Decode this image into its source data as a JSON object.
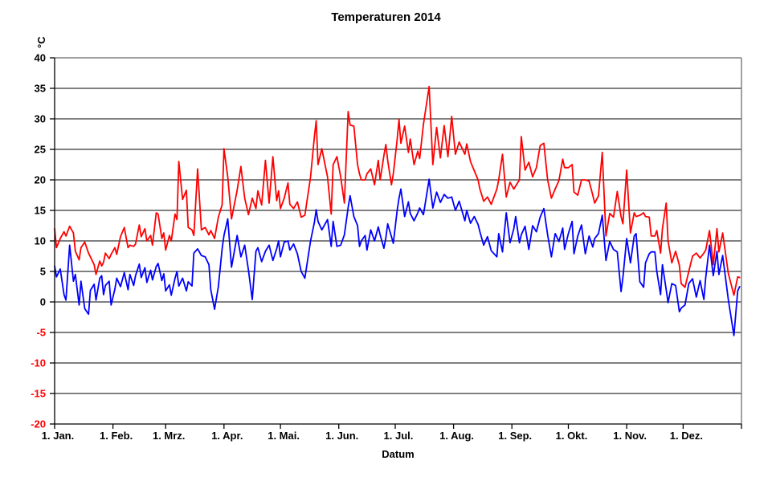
{
  "title": "Temperaturen 2014",
  "x_axis": {
    "label": "Datum",
    "ticks": [
      {
        "label": "1. Jan.",
        "day": 1
      },
      {
        "label": "1. Feb.",
        "day": 32
      },
      {
        "label": "1. Mrz.",
        "day": 60
      },
      {
        "label": "1. Apr.",
        "day": 91
      },
      {
        "label": "1. Mai.",
        "day": 121
      },
      {
        "label": "1. Jun.",
        "day": 152
      },
      {
        "label": "1. Jul.",
        "day": 182
      },
      {
        "label": "1. Aug.",
        "day": 213
      },
      {
        "label": "1. Sep.",
        "day": 244
      },
      {
        "label": "1. Okt.",
        "day": 274
      },
      {
        "label": "1. Nov.",
        "day": 305
      },
      {
        "label": "1. Dez.",
        "day": 335
      }
    ],
    "end_tick_day": 366
  },
  "y_axis": {
    "label": "°C",
    "min": -20,
    "max": 40,
    "step": 5,
    "positive_color": "#000000",
    "negative_color": "#ff0000"
  },
  "colors": {
    "grid": "#000000",
    "axis": "#000000",
    "frame": "#808080",
    "background": "#ffffff"
  },
  "chart_data": {
    "type": "line",
    "title": "Temperaturen 2014",
    "xlabel": "Datum",
    "ylabel": "°C",
    "ylim": [
      -20,
      40
    ],
    "xlim_days": [
      1,
      366
    ],
    "grid": "horizontal-only",
    "legend": "none",
    "x_unit": "day_of_year_2014",
    "x": [
      1,
      2,
      4,
      6,
      7,
      9,
      11,
      12,
      14,
      15,
      17,
      19,
      20,
      22,
      23,
      25,
      26,
      27,
      28,
      30,
      31,
      33,
      34,
      36,
      38,
      40,
      41,
      43,
      44,
      46,
      47,
      49,
      50,
      52,
      53,
      55,
      56,
      58,
      59,
      60,
      62,
      63,
      65,
      66,
      67,
      69,
      71,
      72,
      74,
      75,
      77,
      79,
      81,
      83,
      84,
      86,
      88,
      90,
      91,
      93,
      95,
      98,
      100,
      102,
      104,
      106,
      108,
      109,
      111,
      113,
      115,
      117,
      119,
      120,
      121,
      123,
      125,
      126,
      128,
      130,
      132,
      134,
      137,
      139,
      140,
      141,
      143,
      146,
      148,
      149,
      151,
      153,
      155,
      157,
      158,
      160,
      162,
      163,
      164,
      166,
      167,
      169,
      171,
      173,
      174,
      176,
      177,
      178,
      180,
      181,
      183,
      184,
      185,
      187,
      189,
      190,
      192,
      194,
      195,
      197,
      200,
      202,
      204,
      206,
      208,
      210,
      212,
      214,
      216,
      219,
      220,
      222,
      224,
      226,
      227,
      229,
      231,
      233,
      236,
      237,
      239,
      241,
      243,
      245,
      246,
      248,
      249,
      251,
      253,
      255,
      257,
      259,
      261,
      263,
      265,
      267,
      269,
      271,
      272,
      274,
      276,
      277,
      279,
      281,
      283,
      285,
      287,
      288,
      290,
      292,
      294,
      296,
      298,
      300,
      302,
      303,
      305,
      307,
      309,
      310,
      312,
      314,
      315,
      317,
      318,
      320,
      321,
      323,
      324,
      326,
      327,
      329,
      331,
      333,
      334,
      336,
      338,
      340,
      342,
      344,
      346,
      347,
      349,
      351,
      353,
      354,
      356,
      359,
      362,
      364,
      365
    ],
    "series": [
      {
        "id": "red-series",
        "color": "#ff0000",
        "values": [
          12.0,
          8.9,
          10.4,
          11.5,
          10.8,
          12.4,
          11.3,
          8.3,
          6.9,
          8.9,
          9.8,
          8.0,
          7.4,
          6.1,
          4.5,
          6.7,
          5.9,
          6.5,
          8.0,
          7.1,
          7.8,
          8.9,
          7.8,
          10.7,
          12.2,
          8.9,
          9.3,
          9.1,
          9.5,
          12.6,
          10.7,
          12.0,
          10.0,
          10.9,
          9.3,
          14.6,
          14.4,
          10.4,
          11.3,
          8.5,
          10.9,
          10.0,
          14.4,
          13.5,
          23.0,
          16.8,
          18.3,
          12.2,
          11.8,
          10.9,
          21.8,
          11.8,
          12.2,
          11.0,
          11.7,
          10.4,
          13.9,
          15.9,
          25.1,
          20.5,
          13.6,
          18.3,
          22.2,
          17.0,
          14.3,
          17.0,
          15.3,
          18.2,
          15.9,
          23.2,
          16.2,
          23.8,
          16.6,
          18.2,
          15.3,
          17.0,
          19.5,
          16.0,
          15.3,
          16.4,
          13.9,
          14.2,
          20.5,
          27.0,
          29.7,
          22.5,
          25.1,
          20.5,
          14.4,
          22.5,
          23.8,
          20.5,
          16.2,
          31.2,
          29.0,
          28.8,
          22.5,
          21.0,
          20.0,
          20.0,
          21.0,
          21.8,
          19.2,
          23.2,
          20.0,
          24.0,
          25.8,
          23.2,
          19.2,
          21.0,
          26.5,
          29.9,
          26.0,
          28.8,
          24.5,
          26.7,
          22.5,
          24.7,
          23.5,
          29.1,
          35.3,
          22.5,
          28.6,
          23.6,
          28.9,
          23.8,
          30.4,
          24.2,
          26.2,
          24.2,
          25.9,
          23.0,
          21.5,
          20.0,
          18.5,
          16.5,
          17.2,
          16.0,
          18.5,
          20.0,
          24.2,
          17.2,
          19.6,
          18.5,
          19.0,
          20.0,
          27.1,
          21.6,
          22.9,
          20.5,
          22.0,
          25.6,
          26.0,
          20.0,
          17.0,
          18.5,
          19.9,
          23.4,
          22.0,
          22.0,
          22.5,
          18.0,
          17.5,
          20.0,
          20.0,
          19.8,
          17.5,
          16.2,
          17.4,
          24.5,
          10.8,
          14.5,
          13.9,
          18.1,
          14.0,
          12.8,
          21.6,
          11.3,
          14.6,
          14.0,
          14.2,
          14.6,
          14.0,
          13.9,
          10.8,
          10.8,
          11.7,
          8.0,
          12.0,
          16.2,
          10.0,
          6.4,
          8.3,
          6.0,
          3.0,
          2.4,
          5.0,
          7.5,
          8.0,
          7.2,
          8.0,
          8.5,
          11.7,
          6.1,
          12.0,
          8.2,
          11.3,
          4.7,
          1.1,
          4.1,
          4.0
        ]
      },
      {
        "id": "blue-series",
        "color": "#0000ff",
        "values": [
          5.9,
          4.1,
          5.4,
          1.2,
          0.3,
          9.3,
          3.4,
          4.5,
          -0.5,
          3.4,
          -1.1,
          -2.0,
          1.9,
          2.9,
          0.3,
          3.9,
          4.3,
          1.2,
          2.7,
          3.4,
          -0.5,
          2.1,
          3.9,
          2.5,
          4.8,
          2.0,
          4.5,
          2.7,
          4.3,
          6.2,
          4.0,
          5.6,
          3.2,
          5.2,
          3.6,
          5.8,
          6.3,
          3.5,
          4.6,
          1.8,
          2.8,
          1.1,
          3.9,
          5.0,
          2.6,
          3.9,
          1.8,
          3.3,
          2.6,
          8.0,
          8.7,
          7.6,
          7.4,
          6.1,
          2.0,
          -1.2,
          2.5,
          8.7,
          10.9,
          13.6,
          5.7,
          10.9,
          7.4,
          9.3,
          5.2,
          0.4,
          8.3,
          8.9,
          6.6,
          8.3,
          9.3,
          6.8,
          8.7,
          10.0,
          7.4,
          9.8,
          10.0,
          8.5,
          9.5,
          7.9,
          5.0,
          3.9,
          10.0,
          13.0,
          15.1,
          13.2,
          11.8,
          13.5,
          9.1,
          13.2,
          9.1,
          9.3,
          11.0,
          15.5,
          17.4,
          14.0,
          12.5,
          9.1,
          10.0,
          10.9,
          8.5,
          11.8,
          10.0,
          12.3,
          11.0,
          8.8,
          10.5,
          12.8,
          10.7,
          9.6,
          14.9,
          17.0,
          18.5,
          14.0,
          16.4,
          14.5,
          13.3,
          14.6,
          15.4,
          14.3,
          20.1,
          15.4,
          18.0,
          16.3,
          17.6,
          17.0,
          17.2,
          15.0,
          16.5,
          13.3,
          15.0,
          12.9,
          14.0,
          12.7,
          11.5,
          9.3,
          10.7,
          8.4,
          7.4,
          11.2,
          8.2,
          14.6,
          9.7,
          12.0,
          14.0,
          9.7,
          11.0,
          12.4,
          8.6,
          12.5,
          11.5,
          13.9,
          15.3,
          11.0,
          7.4,
          11.2,
          9.9,
          12.1,
          8.6,
          11.2,
          13.2,
          7.9,
          10.8,
          12.6,
          7.9,
          10.8,
          9.0,
          10.4,
          11.2,
          14.2,
          6.8,
          9.9,
          8.6,
          8.2,
          1.7,
          4.0,
          10.4,
          6.4,
          10.8,
          11.2,
          3.3,
          2.4,
          6.4,
          7.9,
          8.2,
          8.2,
          5.0,
          1.2,
          6.1,
          2.0,
          -0.1,
          3.0,
          2.7,
          -1.6,
          -1.0,
          -0.5,
          3.0,
          3.8,
          0.8,
          3.5,
          0.4,
          4.0,
          9.3,
          4.3,
          8.3,
          4.5,
          7.6,
          0.4,
          -5.5,
          1.8,
          2.5
        ]
      }
    ]
  }
}
